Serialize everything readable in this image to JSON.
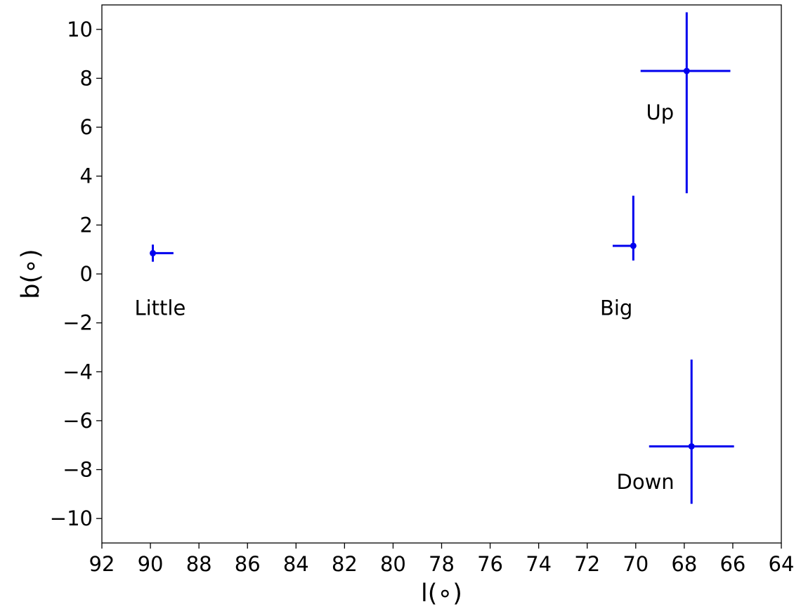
{
  "chart_data": {
    "type": "scatter",
    "title": "",
    "xlabel": "l(∘)",
    "ylabel": "b(∘)",
    "xlim": [
      92,
      64
    ],
    "ylim": [
      -11,
      11
    ],
    "x_inverted": true,
    "grid": false,
    "x_ticks": [
      92,
      90,
      88,
      86,
      84,
      82,
      80,
      78,
      76,
      74,
      72,
      70,
      68,
      66,
      64
    ],
    "x_tick_labels": [
      "92",
      "90",
      "88",
      "86",
      "84",
      "82",
      "80",
      "78",
      "76",
      "74",
      "72",
      "70",
      "68",
      "66",
      "64"
    ],
    "y_ticks": [
      10,
      8,
      6,
      4,
      2,
      0,
      -2,
      -4,
      -6,
      -8,
      -10
    ],
    "y_tick_labels": [
      "10",
      "8",
      "6",
      "4",
      "2",
      "0",
      "−2",
      "−4",
      "−6",
      "−8",
      "−10"
    ],
    "color": "#0000ee",
    "points": [
      {
        "label": "Little",
        "x": 89.9,
        "y": 0.85,
        "x_err": [
          0.0,
          0.85
        ],
        "y_err": [
          0.35,
          0.35
        ],
        "label_x": 89.6,
        "label_y": -1.4
      },
      {
        "label": "Big",
        "x": 70.1,
        "y": 1.15,
        "x_err": [
          0.85,
          0.0
        ],
        "y_err": [
          0.6,
          2.05
        ],
        "label_x": 70.8,
        "label_y": -1.4
      },
      {
        "label": "Up",
        "x": 67.9,
        "y": 8.3,
        "x_err": [
          1.9,
          1.8
        ],
        "y_err": [
          5.0,
          2.4
        ],
        "label_x": 69.0,
        "label_y": 6.6
      },
      {
        "label": "Down",
        "x": 67.7,
        "y": -7.05,
        "x_err": [
          1.75,
          1.75
        ],
        "y_err": [
          2.35,
          3.55
        ],
        "label_x": 69.6,
        "label_y": -8.5
      }
    ]
  }
}
